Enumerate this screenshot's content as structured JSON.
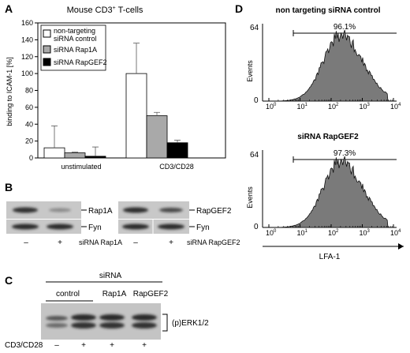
{
  "panels": {
    "A": {
      "letter": "A",
      "title": "Mouse CD3",
      "title_sup": "+",
      "title_suffix": " T-cells",
      "legend": [
        "non-targeting",
        "siRNA control",
        "siRNA Rap1A",
        "siRNA RapGEF2"
      ],
      "colors": {
        "control": "#ffffff",
        "rap1a": "#a9a9a9",
        "rapgef2": "#000000"
      }
    },
    "B": {
      "letter": "B",
      "blot1": {
        "band1": "Rap1A",
        "band2": "Fyn",
        "lanes": [
          "–",
          "+"
        ],
        "treatment": "siRNA Rap1A"
      },
      "blot2": {
        "band1": "RapGEF2",
        "band2": "Fyn",
        "lanes": [
          "–",
          "+"
        ],
        "treatment": "siRNA RapGEF2"
      }
    },
    "C": {
      "letter": "C",
      "header": "siRNA",
      "groups": [
        "control",
        "Rap1A",
        "RapGEF2"
      ],
      "band_label": "(p)ERK1/2",
      "stim_label": "CD3/CD28",
      "stim_lanes": [
        "–",
        "+",
        "+",
        "+"
      ]
    },
    "D": {
      "letter": "D",
      "xlabel": "LFA-1",
      "ylabel": "Events",
      "histograms": [
        {
          "title": "non targeting siRNA control",
          "percent": "96.1%",
          "ymax": "64",
          "ymin": "0"
        },
        {
          "title": "siRNA RapGEF2",
          "percent": "97.3%",
          "ymax": "64",
          "ymin": "0"
        }
      ],
      "x_ticks": [
        "10",
        "10",
        "10",
        "10",
        "10"
      ],
      "x_tick_exp": [
        "0",
        "1",
        "2",
        "3",
        "4"
      ]
    }
  },
  "chart_data": {
    "type": "bar",
    "title": "Mouse CD3+ T-cells",
    "ylabel": "binding to ICAM-1 [%]",
    "ylim": [
      0,
      160
    ],
    "yticks": [
      "0",
      "20",
      "40",
      "60",
      "80",
      "100",
      "120",
      "140",
      "160"
    ],
    "categories": [
      "unstimulated",
      "CD3/CD28"
    ],
    "series": [
      {
        "name": "non-targeting siRNA control",
        "values": [
          12,
          100
        ],
        "errors": [
          26,
          36
        ]
      },
      {
        "name": "siRNA Rap1A",
        "values": [
          6,
          50
        ],
        "errors": [
          1,
          4
        ]
      },
      {
        "name": "siRNA RapGEF2",
        "values": [
          2,
          18
        ],
        "errors": [
          11,
          3
        ]
      }
    ]
  }
}
